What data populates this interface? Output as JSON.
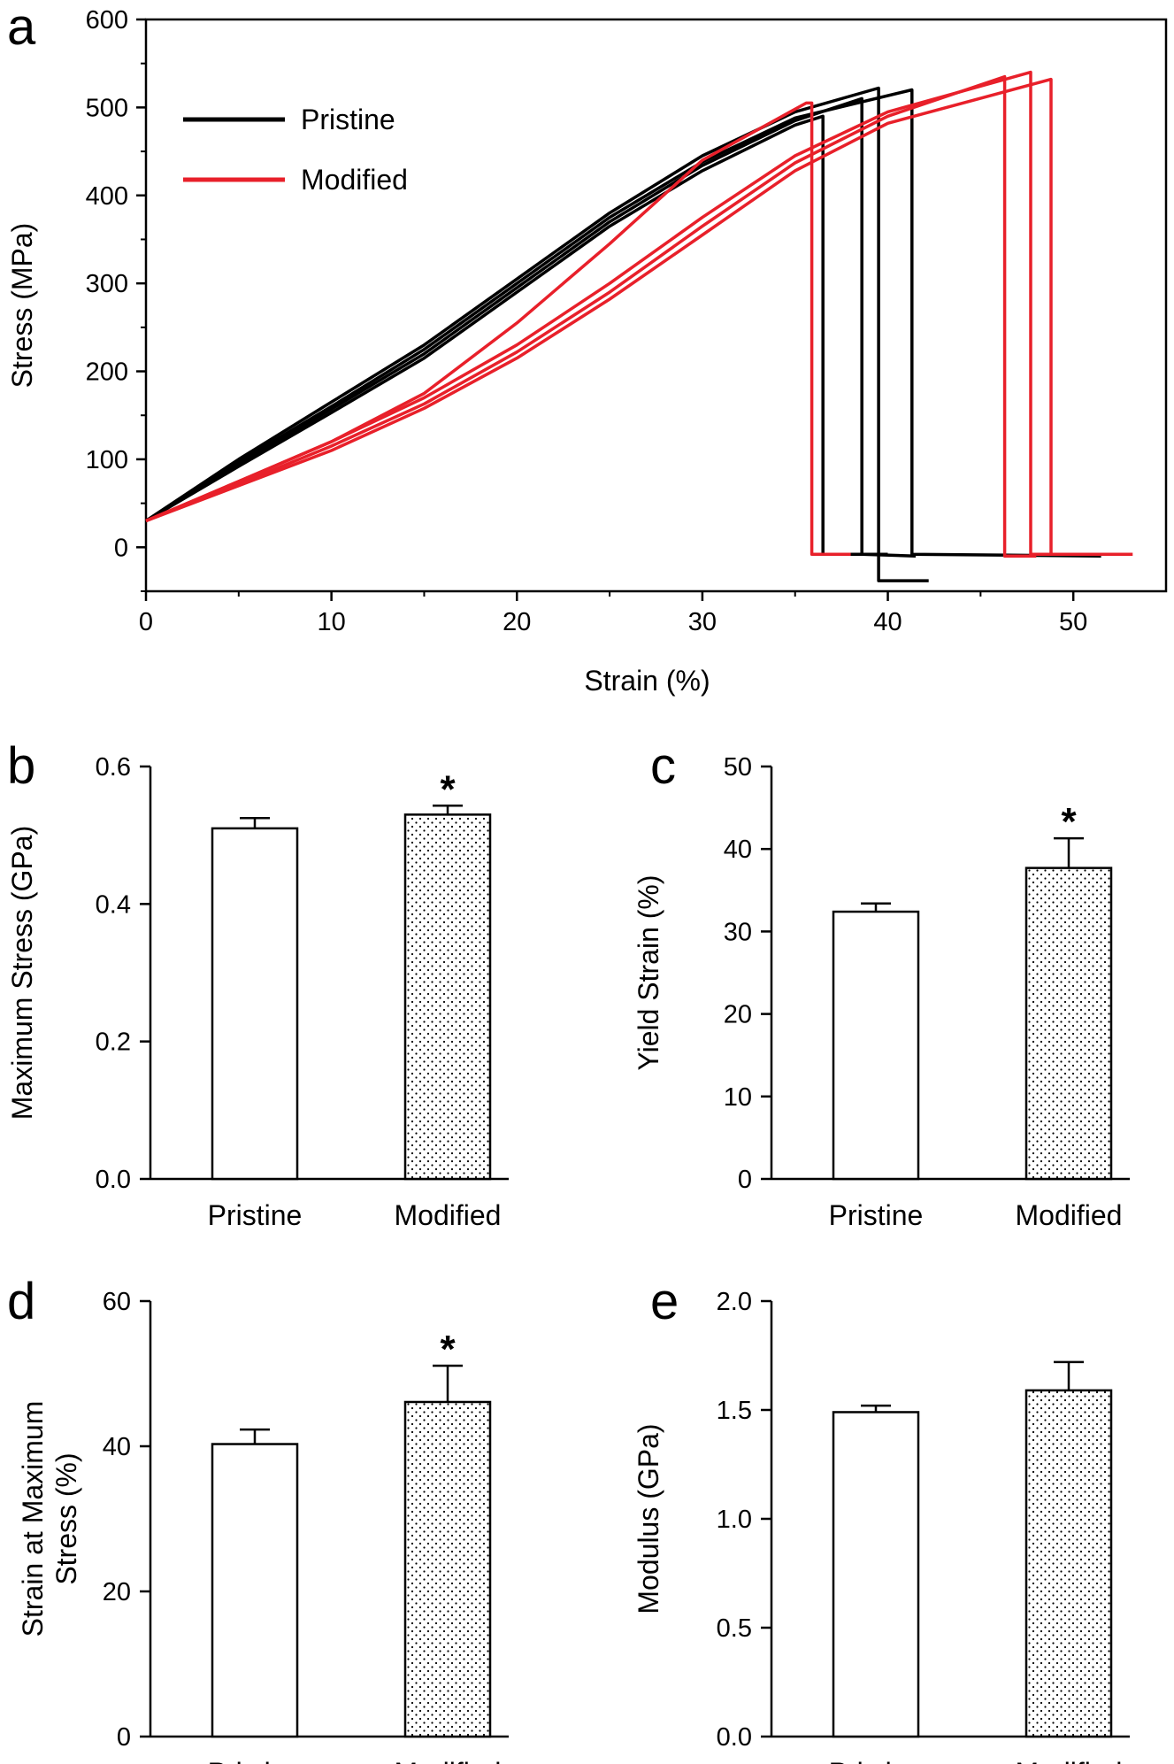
{
  "chart_data": [
    {
      "panel": "a",
      "type": "line",
      "title": "",
      "xlabel": "Strain (%)",
      "ylabel": "Stress (MPa)",
      "xlim": [
        0,
        55
      ],
      "ylim": [
        -50,
        600
      ],
      "xticks": [
        0,
        10,
        20,
        30,
        40,
        50
      ],
      "yticks": [
        0,
        100,
        200,
        300,
        400,
        500,
        600
      ],
      "grid": false,
      "legend_position": "top-left",
      "legend": [
        {
          "name": "Pristine",
          "color": "#000000"
        },
        {
          "name": "Modified",
          "color": "#e8202a"
        }
      ],
      "series": [
        {
          "name": "Pristine",
          "color": "#000000",
          "x": [
            0,
            5,
            10,
            15,
            20,
            25,
            30,
            35,
            39.5,
            39.5,
            42.2
          ],
          "y": [
            30,
            100,
            165,
            230,
            305,
            380,
            445,
            495,
            522,
            -38,
            -38
          ]
        },
        {
          "name": "Pristine",
          "color": "#000000",
          "x": [
            0,
            5,
            10,
            15,
            20,
            25,
            30,
            35,
            41.3,
            41.3,
            51.5
          ],
          "y": [
            30,
            97,
            160,
            225,
            300,
            375,
            438,
            488,
            520,
            -8,
            -10
          ]
        },
        {
          "name": "Pristine",
          "color": "#000000",
          "x": [
            0,
            5,
            10,
            15,
            20,
            25,
            30,
            35,
            38.6,
            38.6,
            41.5
          ],
          "y": [
            30,
            95,
            157,
            220,
            295,
            370,
            434,
            485,
            510,
            -8,
            -10
          ]
        },
        {
          "name": "Pristine",
          "color": "#000000",
          "x": [
            0,
            5,
            10,
            15,
            20,
            25,
            30,
            35,
            36.5,
            36.5,
            40
          ],
          "y": [
            30,
            92,
            153,
            215,
            290,
            365,
            428,
            480,
            490,
            -8,
            -8
          ]
        },
        {
          "name": "Modified",
          "color": "#e8202a",
          "x": [
            0,
            5,
            10,
            15,
            20,
            25,
            30,
            35.6,
            35.9,
            35.9,
            38
          ],
          "y": [
            30,
            75,
            120,
            175,
            255,
            345,
            440,
            505,
            505,
            -8,
            -8
          ]
        },
        {
          "name": "Modified",
          "color": "#e8202a",
          "x": [
            0,
            5,
            10,
            15,
            20,
            25,
            30,
            35,
            40,
            47.7,
            47.7,
            53.2
          ],
          "y": [
            30,
            75,
            120,
            170,
            230,
            300,
            375,
            445,
            495,
            540,
            -8,
            -8
          ]
        },
        {
          "name": "Modified",
          "color": "#e8202a",
          "x": [
            0,
            5,
            10,
            15,
            20,
            25,
            30,
            35,
            40,
            46.3,
            46.3,
            48
          ],
          "y": [
            30,
            72,
            115,
            163,
            222,
            290,
            365,
            437,
            490,
            535,
            -10,
            -10
          ]
        },
        {
          "name": "Modified",
          "color": "#e8202a",
          "x": [
            0,
            5,
            10,
            15,
            20,
            25,
            30,
            35,
            40,
            48.8,
            48.8,
            50
          ],
          "y": [
            30,
            70,
            110,
            158,
            215,
            282,
            355,
            428,
            482,
            532,
            -8,
            -8
          ]
        }
      ]
    },
    {
      "panel": "b",
      "type": "bar",
      "categories": [
        "Pristine",
        "Modified"
      ],
      "values": [
        0.51,
        0.53
      ],
      "errors": [
        0.015,
        0.013
      ],
      "patterns": [
        "plain",
        "dotted"
      ],
      "significance": [
        "",
        "*"
      ],
      "ylabel": "Maximum Stress (GPa)",
      "ylim": [
        0.0,
        0.6
      ],
      "yticks": [
        0.0,
        0.2,
        0.4,
        0.6
      ],
      "ytick_labels": [
        "0.0",
        "0.2",
        "0.4",
        "0.6"
      ],
      "ytick_decimals": 1
    },
    {
      "panel": "c",
      "type": "bar",
      "categories": [
        "Pristine",
        "Modified"
      ],
      "values": [
        32.4,
        37.7
      ],
      "errors": [
        1.0,
        3.6
      ],
      "patterns": [
        "plain",
        "dotted"
      ],
      "significance": [
        "",
        "*"
      ],
      "ylabel": "Yield Strain (%)",
      "ylim": [
        0,
        50
      ],
      "yticks": [
        0,
        10,
        20,
        30,
        40,
        50
      ],
      "ytick_labels": [
        "0",
        "10",
        "20",
        "30",
        "40",
        "50"
      ],
      "ytick_decimals": 0
    },
    {
      "panel": "d",
      "type": "bar",
      "categories": [
        "Pristine",
        "Modified"
      ],
      "values": [
        40.3,
        46.1
      ],
      "errors": [
        2.0,
        5.0
      ],
      "patterns": [
        "plain",
        "dotted"
      ],
      "significance": [
        "",
        "*"
      ],
      "ylabel": "Strain at Maximum Stress (%)",
      "ylabel_lines": [
        "Strain at Maximum",
        "Stress (%)"
      ],
      "ylim": [
        0,
        60
      ],
      "yticks": [
        0,
        20,
        40,
        60
      ],
      "ytick_labels": [
        "0",
        "20",
        "40",
        "60"
      ],
      "ytick_decimals": 0
    },
    {
      "panel": "e",
      "type": "bar",
      "categories": [
        "Pristine",
        "Modified"
      ],
      "values": [
        1.49,
        1.59
      ],
      "errors": [
        0.03,
        0.13
      ],
      "patterns": [
        "plain",
        "dotted"
      ],
      "significance": [
        "",
        ""
      ],
      "ylabel": "Modulus (GPa)",
      "ylim": [
        0.0,
        2.0
      ],
      "yticks": [
        0.0,
        0.5,
        1.0,
        1.5,
        2.0
      ],
      "ytick_labels": [
        "0.0",
        "0.5",
        "1.0",
        "1.5",
        "2.0"
      ],
      "ytick_decimals": 1
    }
  ]
}
